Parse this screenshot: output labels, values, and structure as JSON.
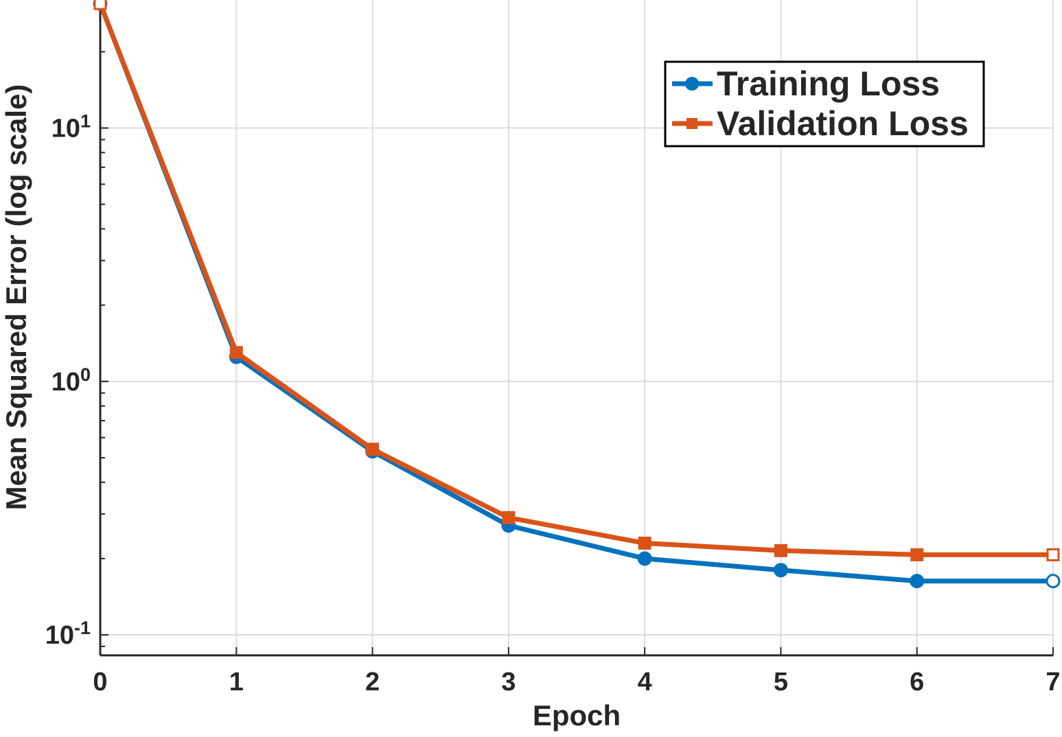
{
  "chart_data": {
    "type": "line",
    "title": "",
    "xlabel": "Epoch",
    "ylabel": "Mean Squared Error (log scale)",
    "yscale": "log",
    "xlim": [
      0,
      7
    ],
    "ylim": [
      0.083,
      32
    ],
    "grid": true,
    "legend_position": "top-right",
    "x": [
      0,
      1,
      2,
      3,
      4,
      5,
      6,
      7
    ],
    "x_ticks": [
      0,
      1,
      2,
      3,
      4,
      5,
      6,
      7
    ],
    "y_ticks": [
      {
        "value": 0.1,
        "base": "10",
        "exp": "-1"
      },
      {
        "value": 1,
        "base": "10",
        "exp": "0"
      },
      {
        "value": 10,
        "base": "10",
        "exp": "1"
      }
    ],
    "series": [
      {
        "name": "Training Loss",
        "color": "#0072BD",
        "marker": "circle",
        "values": [
          31,
          1.25,
          0.53,
          0.27,
          0.2,
          0.18,
          0.163,
          0.163
        ]
      },
      {
        "name": "Validation Loss",
        "color": "#D95319",
        "marker": "square",
        "values": [
          31,
          1.3,
          0.54,
          0.29,
          0.23,
          0.215,
          0.207,
          0.207
        ]
      }
    ]
  }
}
